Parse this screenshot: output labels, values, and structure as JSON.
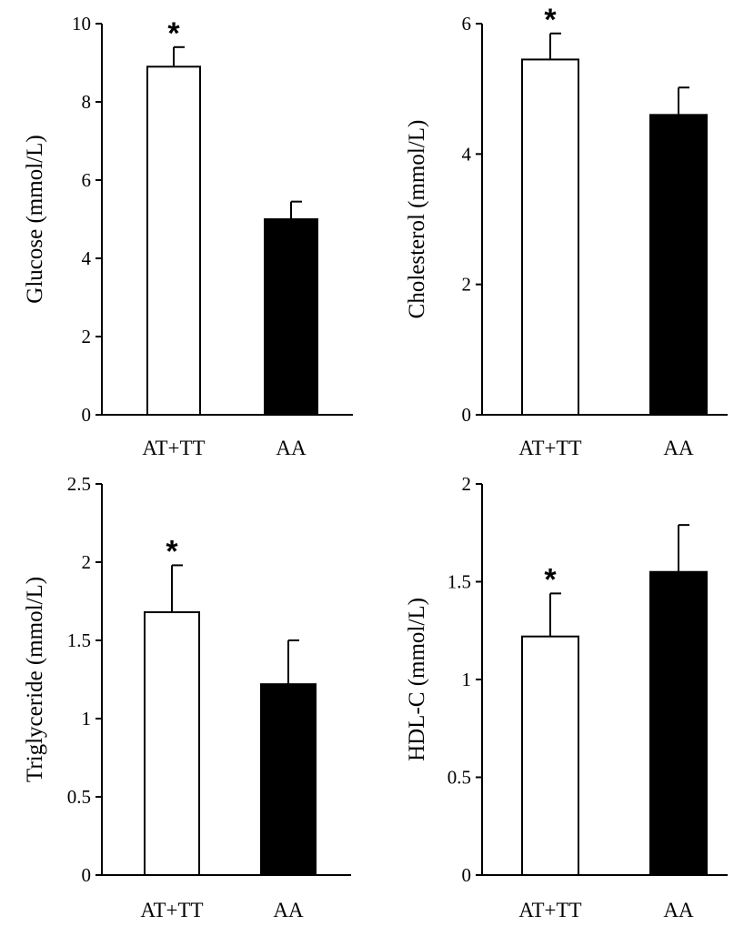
{
  "chart_data": [
    {
      "type": "bar",
      "ylabel": "Glucose (mmol/L)",
      "categories": [
        "AT+TT",
        "AA"
      ],
      "values": [
        8.9,
        5.0
      ],
      "errors": [
        0.5,
        0.45
      ],
      "annotations": [
        "*",
        ""
      ],
      "ylim": [
        0,
        10
      ],
      "yticks": [
        0,
        2,
        4,
        6,
        8,
        10
      ],
      "ytick_labels": [
        "0",
        "2",
        "4",
        "6",
        "8",
        "10"
      ],
      "colors": [
        "#ffffff",
        "#000000"
      ]
    },
    {
      "type": "bar",
      "ylabel": "Cholesterol (mmol/L)",
      "categories": [
        "AT+TT",
        "AA"
      ],
      "values": [
        5.45,
        4.6
      ],
      "errors": [
        0.4,
        0.42
      ],
      "annotations": [
        "*",
        ""
      ],
      "ylim": [
        0,
        6
      ],
      "yticks": [
        0,
        2,
        4,
        6
      ],
      "ytick_labels": [
        "0",
        "2",
        "4",
        "6"
      ],
      "colors": [
        "#ffffff",
        "#000000"
      ]
    },
    {
      "type": "bar",
      "ylabel": "Triglyceride (mmol/L)",
      "categories": [
        "AT+TT",
        "AA"
      ],
      "values": [
        1.68,
        1.22
      ],
      "errors": [
        0.3,
        0.28
      ],
      "annotations": [
        "*",
        ""
      ],
      "ylim": [
        0,
        2.5
      ],
      "yticks": [
        0,
        0.5,
        1,
        1.5,
        2,
        2.5
      ],
      "ytick_labels": [
        "0",
        "0.5",
        "1",
        "1.5",
        "2",
        "2.5"
      ],
      "colors": [
        "#ffffff",
        "#000000"
      ]
    },
    {
      "type": "bar",
      "ylabel": "HDL-C (mmol/L)",
      "categories": [
        "AT+TT",
        "AA"
      ],
      "values": [
        1.22,
        1.55
      ],
      "errors": [
        0.22,
        0.24
      ],
      "annotations": [
        "*",
        ""
      ],
      "ylim": [
        0,
        2
      ],
      "yticks": [
        0,
        0.5,
        1,
        1.5,
        2
      ],
      "ytick_labels": [
        "0",
        "0.5",
        "1",
        "1.5",
        "2"
      ],
      "colors": [
        "#ffffff",
        "#000000"
      ]
    }
  ]
}
